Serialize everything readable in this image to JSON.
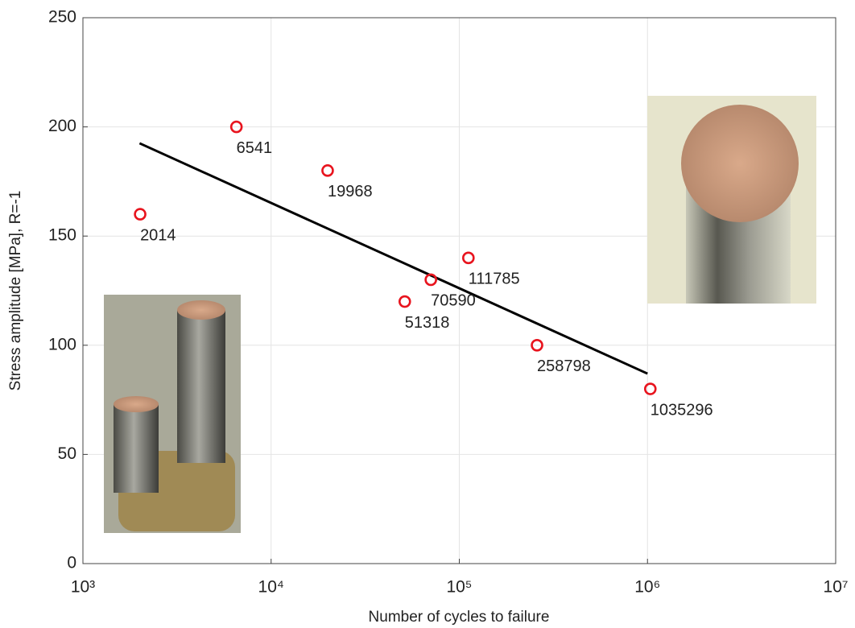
{
  "chart_data": {
    "type": "scatter",
    "x_label": "Number of cycles to failure",
    "y_label": "Stress amplitude [MPa], R=-1",
    "x_scale": "log",
    "xlim": [
      1000,
      10000000
    ],
    "xticks": [
      {
        "value": 1000,
        "label": "10³"
      },
      {
        "value": 10000,
        "label": "10⁴"
      },
      {
        "value": 100000,
        "label": "10⁵"
      },
      {
        "value": 1000000,
        "label": "10⁶"
      },
      {
        "value": 10000000,
        "label": "10⁷"
      }
    ],
    "ylim": [
      0,
      250
    ],
    "yticks": [
      0,
      50,
      100,
      150,
      200,
      250
    ],
    "grid": true,
    "color": "#e8141e",
    "x": [
      2014,
      6541,
      19968,
      51318,
      70590,
      111785,
      258798,
      1035296
    ],
    "values": [
      160,
      200,
      180,
      120,
      130,
      140,
      100,
      80
    ],
    "fit_line": {
      "x": [
        2000,
        1000000
      ],
      "values": [
        192.5,
        87
      ],
      "color": "#000000"
    }
  }
}
